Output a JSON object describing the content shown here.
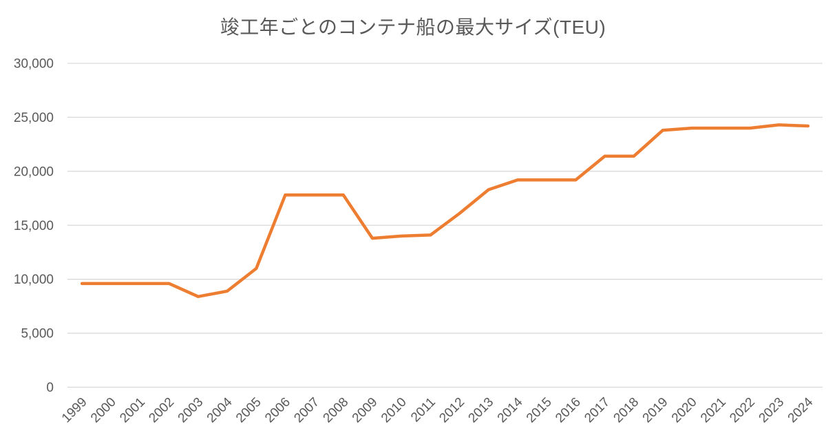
{
  "title": "竣工年ごとのコンテナ船の最大サイズ(TEU)",
  "colors": {
    "line": "#ED7D31",
    "grid": "#D9D9D9",
    "text": "#595959",
    "background": "#FFFFFF"
  },
  "chart_data": {
    "type": "line",
    "title": "竣工年ごとのコンテナ船の最大サイズ(TEU)",
    "categories": [
      "1999",
      "2000",
      "2001",
      "2002",
      "2003",
      "2004",
      "2005",
      "2006",
      "2007",
      "2008",
      "2009",
      "2010",
      "2011",
      "2012",
      "2013",
      "2014",
      "2015",
      "2016",
      "2017",
      "2018",
      "2019",
      "2020",
      "2021",
      "2022",
      "2023",
      "2024"
    ],
    "values": [
      9600,
      9600,
      9600,
      9600,
      8400,
      8900,
      11000,
      17800,
      17800,
      17800,
      13800,
      14000,
      14100,
      16100,
      18300,
      19200,
      19200,
      19200,
      21400,
      21400,
      23800,
      24000,
      24000,
      24000,
      24300,
      24200
    ],
    "xlabel": "",
    "ylabel": "",
    "ylim": [
      0,
      30000
    ],
    "ytick_step": 5000,
    "ytick_labels": [
      "0",
      "5,000",
      "10,000",
      "15,000",
      "20,000",
      "25,000",
      "30,000"
    ],
    "grid": true,
    "legend_position": "none",
    "x_label_rotation": -45
  }
}
